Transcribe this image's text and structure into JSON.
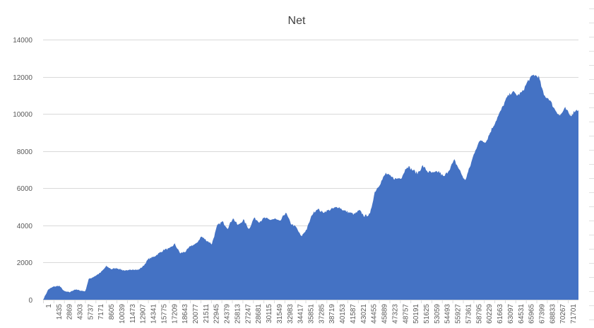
{
  "chart_data": {
    "type": "area",
    "title": "Net",
    "xlabel": "",
    "ylabel": "",
    "ylim": [
      0,
      14000
    ],
    "y_ticks": [
      0,
      2000,
      4000,
      6000,
      8000,
      10000,
      12000,
      14000
    ],
    "x_range": [
      1,
      72800
    ],
    "x_tick_labels": [
      "1",
      "1435",
      "2869",
      "4303",
      "5737",
      "7171",
      "8605",
      "10039",
      "11473",
      "12907",
      "14341",
      "15775",
      "17209",
      "18643",
      "20077",
      "21511",
      "22945",
      "24379",
      "25813",
      "27247",
      "28681",
      "30115",
      "31549",
      "32983",
      "34417",
      "35851",
      "37285",
      "38719",
      "40153",
      "41587",
      "43021",
      "44455",
      "45889",
      "47323",
      "48757",
      "50191",
      "51625",
      "53059",
      "54493",
      "55927",
      "57361",
      "58795",
      "60229",
      "61663",
      "63097",
      "64531",
      "65965",
      "67399",
      "68833",
      "70267",
      "71701"
    ],
    "grid": true,
    "legend": "none",
    "color": "#4472c4",
    "x": [
      1,
      700,
      1400,
      2200,
      2900,
      3600,
      4300,
      5000,
      5737,
      6200,
      7171,
      7800,
      8605,
      9300,
      10039,
      10800,
      11473,
      12200,
      12907,
      13600,
      14341,
      15000,
      15775,
      16500,
      17209,
      17900,
      18643,
      19400,
      20077,
      20800,
      21511,
      22200,
      22945,
      23700,
      24379,
      25100,
      25813,
      26500,
      27247,
      28000,
      28681,
      29400,
      30115,
      30800,
      31549,
      32200,
      32983,
      33700,
      34417,
      35100,
      35851,
      36600,
      37285,
      38000,
      38719,
      39400,
      40153,
      40900,
      41587,
      42300,
      43021,
      43700,
      44455,
      45100,
      45889,
      46600,
      47323,
      48000,
      48757,
      49500,
      50191,
      50900,
      51625,
      52300,
      53059,
      53800,
      54493,
      55200,
      55927,
      56600,
      57361,
      58000,
      58795,
      59500,
      60229,
      60900,
      61663,
      62400,
      63097,
      63800,
      64531,
      65200,
      65965,
      66700,
      67399,
      68100,
      68833,
      69500,
      70267,
      71000,
      71701,
      72400,
      72800
    ],
    "values": [
      0,
      550,
      700,
      750,
      450,
      400,
      550,
      500,
      450,
      1100,
      1300,
      1450,
      1800,
      1650,
      1700,
      1600,
      1550,
      1650,
      1600,
      1800,
      2200,
      2300,
      2500,
      2700,
      2750,
      3000,
      2500,
      2600,
      2900,
      3000,
      3400,
      3200,
      3000,
      4000,
      4200,
      3850,
      4400,
      4000,
      4300,
      3800,
      4400,
      4200,
      4400,
      4300,
      4350,
      4200,
      4700,
      4100,
      3900,
      3400,
      3800,
      4600,
      4900,
      4700,
      4800,
      4900,
      5000,
      4800,
      4700,
      4600,
      4800,
      4500,
      4600,
      5800,
      6300,
      6800,
      6600,
      6500,
      6600,
      7200,
      7000,
      6800,
      7200,
      6900,
      6800,
      6900,
      6600,
      7000,
      7500,
      7000,
      6400,
      7100,
      8100,
      8600,
      8500,
      9100,
      9700,
      10300,
      10900,
      11200,
      11000,
      11200,
      11800,
      12100,
      12000,
      11000,
      10800,
      10300,
      9900,
      10300,
      9900,
      10200,
      10200
    ]
  }
}
